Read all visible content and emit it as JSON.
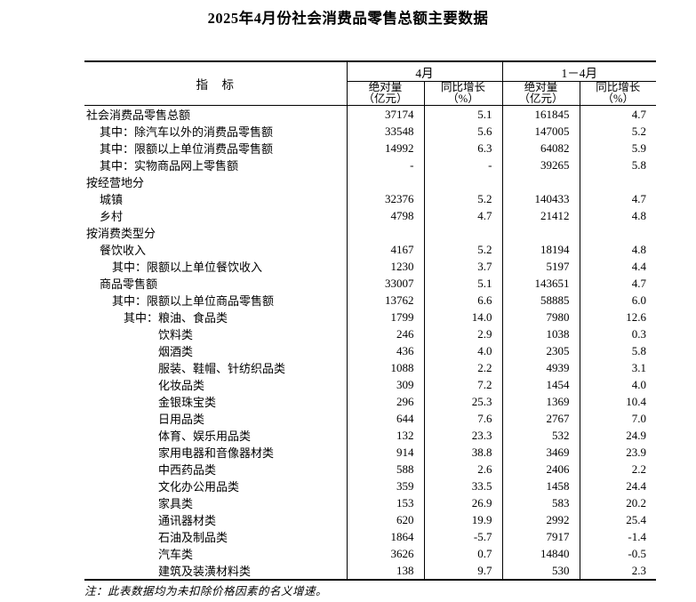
{
  "page": {
    "title": "2025年4月份社会消费品零售总额主要数据",
    "note": "注：此表数据均为未扣除价格因素的名义增速。",
    "background_color": "#ffffff",
    "text_color": "#000000",
    "border_color": "#000000"
  },
  "table": {
    "header": {
      "indicator": "指　标",
      "groups": [
        {
          "label": "4月"
        },
        {
          "label": "1－4月"
        }
      ],
      "subheaders": [
        {
          "line1": "绝对量",
          "line2": "（亿元）"
        },
        {
          "line1": "同比增长",
          "line2": "（%）"
        },
        {
          "line1": "绝对量",
          "line2": "（亿元）"
        },
        {
          "line1": "同比增长",
          "line2": "（%）"
        }
      ]
    },
    "rows": [
      {
        "label": "社会消费品零售总额",
        "indent": 0,
        "values": [
          "37174",
          "5.1",
          "161845",
          "4.7"
        ]
      },
      {
        "label": "其中：除汽车以外的消费品零售额",
        "indent": 1,
        "values": [
          "33548",
          "5.6",
          "147005",
          "5.2"
        ]
      },
      {
        "label": "其中：限额以上单位消费品零售额",
        "indent": 1,
        "values": [
          "14992",
          "6.3",
          "64082",
          "5.9"
        ]
      },
      {
        "label": "其中：实物商品网上零售额",
        "indent": 1,
        "values": [
          "-",
          "-",
          "39265",
          "5.8"
        ]
      },
      {
        "label": "按经营地分",
        "indent": 0,
        "values": [
          "",
          "",
          "",
          ""
        ]
      },
      {
        "label": "城镇",
        "indent": 1,
        "values": [
          "32376",
          "5.2",
          "140433",
          "4.7"
        ]
      },
      {
        "label": "乡村",
        "indent": 1,
        "values": [
          "4798",
          "4.7",
          "21412",
          "4.8"
        ]
      },
      {
        "label": "按消费类型分",
        "indent": 0,
        "values": [
          "",
          "",
          "",
          ""
        ]
      },
      {
        "label": "餐饮收入",
        "indent": 1,
        "values": [
          "4167",
          "5.2",
          "18194",
          "4.8"
        ]
      },
      {
        "label": "其中：限额以上单位餐饮收入",
        "indent": 2,
        "values": [
          "1230",
          "3.7",
          "5197",
          "4.4"
        ]
      },
      {
        "label": "商品零售额",
        "indent": 1,
        "values": [
          "33007",
          "5.1",
          "143651",
          "4.7"
        ]
      },
      {
        "label": "其中：限额以上单位商品零售额",
        "indent": 2,
        "values": [
          "13762",
          "6.6",
          "58885",
          "6.0"
        ]
      },
      {
        "label": "其中：粮油、食品类",
        "indent": 3,
        "values": [
          "1799",
          "14.0",
          "7980",
          "12.6"
        ]
      },
      {
        "label": "饮料类",
        "indent": 4,
        "values": [
          "246",
          "2.9",
          "1038",
          "0.3"
        ]
      },
      {
        "label": "烟酒类",
        "indent": 4,
        "values": [
          "436",
          "4.0",
          "2305",
          "5.8"
        ]
      },
      {
        "label": "服装、鞋帽、针纺织品类",
        "indent": 4,
        "values": [
          "1088",
          "2.2",
          "4939",
          "3.1"
        ]
      },
      {
        "label": "化妆品类",
        "indent": 4,
        "values": [
          "309",
          "7.2",
          "1454",
          "4.0"
        ]
      },
      {
        "label": "金银珠宝类",
        "indent": 4,
        "values": [
          "296",
          "25.3",
          "1369",
          "10.4"
        ]
      },
      {
        "label": "日用品类",
        "indent": 4,
        "values": [
          "644",
          "7.6",
          "2767",
          "7.0"
        ]
      },
      {
        "label": "体育、娱乐用品类",
        "indent": 4,
        "values": [
          "132",
          "23.3",
          "532",
          "24.9"
        ]
      },
      {
        "label": "家用电器和音像器材类",
        "indent": 4,
        "values": [
          "914",
          "38.8",
          "3469",
          "23.9"
        ]
      },
      {
        "label": "中西药品类",
        "indent": 4,
        "values": [
          "588",
          "2.6",
          "2406",
          "2.2"
        ]
      },
      {
        "label": "文化办公用品类",
        "indent": 4,
        "values": [
          "359",
          "33.5",
          "1458",
          "24.4"
        ]
      },
      {
        "label": "家具类",
        "indent": 4,
        "values": [
          "153",
          "26.9",
          "583",
          "20.2"
        ]
      },
      {
        "label": "通讯器材类",
        "indent": 4,
        "values": [
          "620",
          "19.9",
          "2992",
          "25.4"
        ]
      },
      {
        "label": "石油及制品类",
        "indent": 4,
        "values": [
          "1864",
          "-5.7",
          "7917",
          "-1.4"
        ]
      },
      {
        "label": "汽车类",
        "indent": 4,
        "values": [
          "3626",
          "0.7",
          "14840",
          "-0.5"
        ]
      },
      {
        "label": "建筑及装潢材料类",
        "indent": 4,
        "values": [
          "138",
          "9.7",
          "530",
          "2.3"
        ]
      }
    ]
  }
}
